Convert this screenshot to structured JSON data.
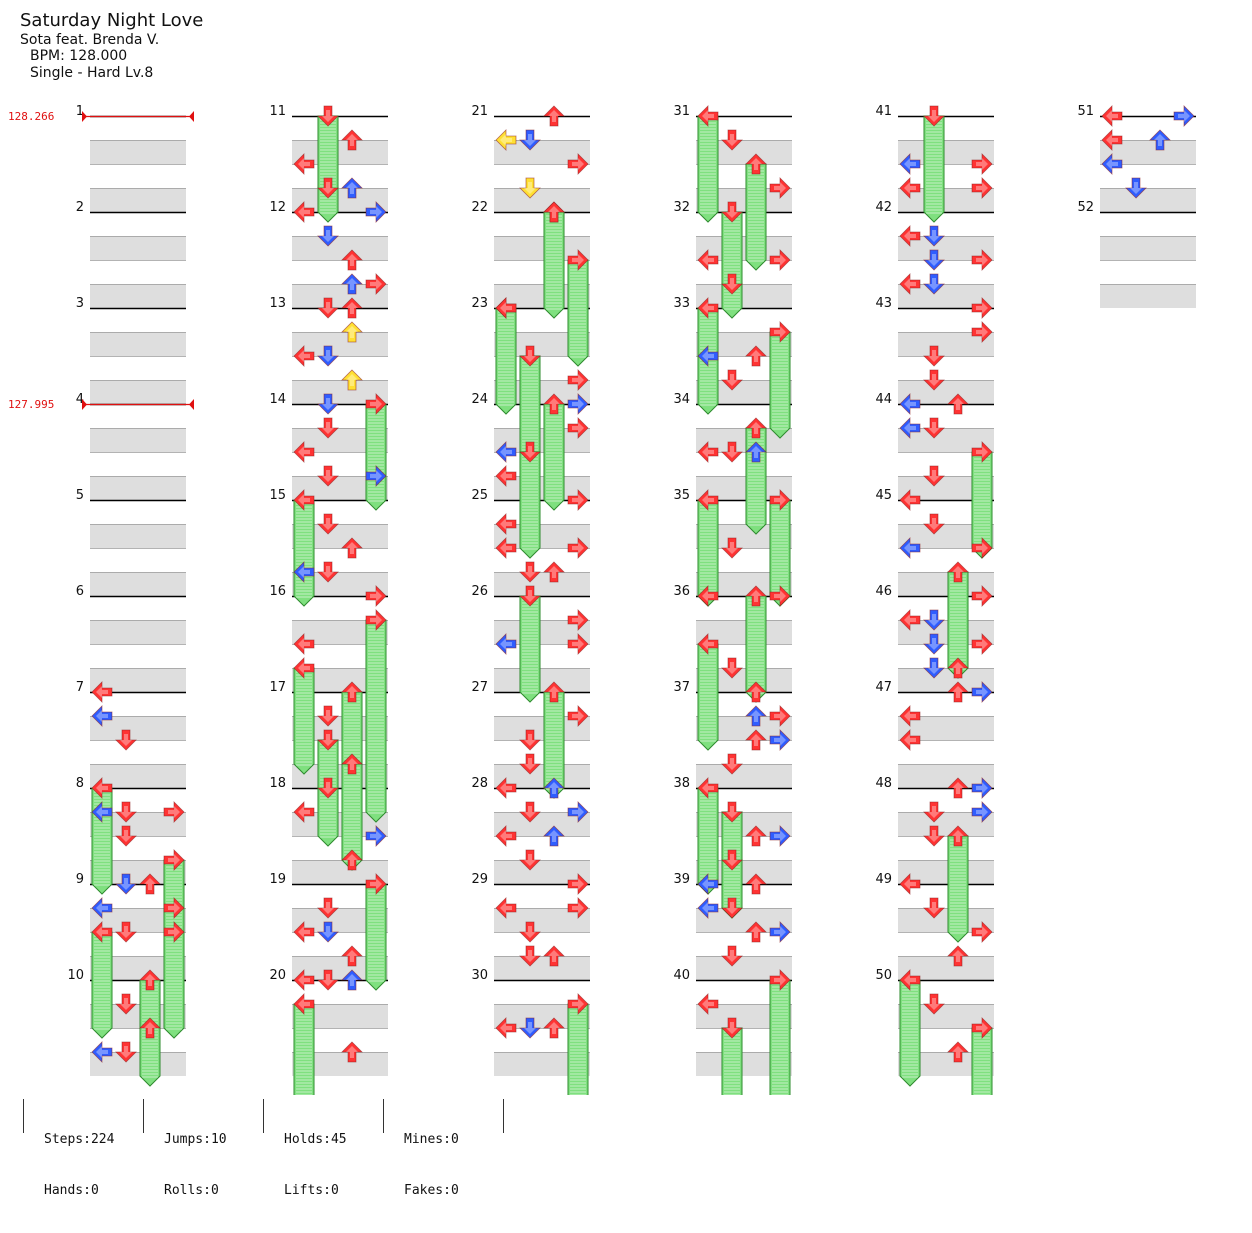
{
  "song": {
    "title": "Saturday Night Love",
    "artist": "Sota feat. Brenda V.",
    "bpm_label": "BPM: 128.000",
    "difficulty_label": "Single - Hard  Lv.8"
  },
  "bpm_changes": [
    {
      "measure": 1,
      "label": "128.266"
    },
    {
      "measure": 4,
      "label": "127.995"
    }
  ],
  "colors": {
    "quarter": "#ff3333",
    "eighth": "#2f5dff",
    "sixteenth": "#ffe033",
    "hold_fill": "#7fe07f",
    "hold_edge": "#2e8b2e",
    "band": "#dedede",
    "bpm_marker": "#e01010"
  },
  "measures": [
    {
      "n": 1,
      "label": "1"
    },
    {
      "n": 2,
      "label": "2"
    },
    {
      "n": 3,
      "label": "3"
    },
    {
      "n": 4,
      "label": "4"
    },
    {
      "n": 5,
      "label": "5"
    },
    {
      "n": 6,
      "label": "6"
    },
    {
      "n": 7,
      "label": "7"
    },
    {
      "n": 8,
      "label": "8"
    },
    {
      "n": 9,
      "label": "9"
    },
    {
      "n": 10,
      "label": "10"
    },
    {
      "n": 11,
      "label": "11"
    },
    {
      "n": 12,
      "label": "12"
    },
    {
      "n": 13,
      "label": "13"
    },
    {
      "n": 14,
      "label": "14"
    },
    {
      "n": 15,
      "label": "15"
    },
    {
      "n": 16,
      "label": "16"
    },
    {
      "n": 17,
      "label": "17"
    },
    {
      "n": 18,
      "label": "18"
    },
    {
      "n": 19,
      "label": "19"
    },
    {
      "n": 20,
      "label": "20"
    },
    {
      "n": 21,
      "label": "21"
    },
    {
      "n": 22,
      "label": "22"
    },
    {
      "n": 23,
      "label": "23"
    },
    {
      "n": 24,
      "label": "24"
    },
    {
      "n": 25,
      "label": "25"
    },
    {
      "n": 26,
      "label": "26"
    },
    {
      "n": 27,
      "label": "27"
    },
    {
      "n": 28,
      "label": "28"
    },
    {
      "n": 29,
      "label": "29"
    },
    {
      "n": 30,
      "label": "30"
    },
    {
      "n": 31,
      "label": "31"
    },
    {
      "n": 32,
      "label": "32"
    },
    {
      "n": 33,
      "label": "33"
    },
    {
      "n": 34,
      "label": "34"
    },
    {
      "n": 35,
      "label": "35"
    },
    {
      "n": 36,
      "label": "36"
    },
    {
      "n": 37,
      "label": "37"
    },
    {
      "n": 38,
      "label": "38"
    },
    {
      "n": 39,
      "label": "39"
    },
    {
      "n": 40,
      "label": "40"
    },
    {
      "n": 41,
      "label": "41"
    },
    {
      "n": 42,
      "label": "42"
    },
    {
      "n": 43,
      "label": "43"
    },
    {
      "n": 44,
      "label": "44"
    },
    {
      "n": 45,
      "label": "45"
    },
    {
      "n": 46,
      "label": "46"
    },
    {
      "n": 47,
      "label": "47"
    },
    {
      "n": 48,
      "label": "48"
    },
    {
      "n": 49,
      "label": "49"
    },
    {
      "n": 50,
      "label": "50"
    },
    {
      "n": 51,
      "label": "51"
    },
    {
      "n": 52,
      "label": "52"
    }
  ],
  "notes": [
    [
      7,
      0,
      "L",
      "q"
    ],
    [
      7,
      1,
      "L",
      "e"
    ],
    [
      7,
      2,
      "D",
      "q"
    ],
    [
      7,
      5,
      "L",
      "e"
    ],
    [
      7,
      5,
      "R",
      "q"
    ],
    [
      7,
      6,
      "D",
      "q"
    ],
    [
      8,
      0,
      "L",
      "q",
      1.0
    ],
    [
      8,
      1,
      "D",
      "q"
    ],
    [
      8,
      3,
      "R",
      "q",
      1.0
    ],
    [
      8,
      6,
      "D",
      "q"
    ],
    [
      9,
      0,
      "D",
      "e"
    ],
    [
      9,
      0,
      "U",
      "q"
    ],
    [
      9,
      1,
      "L",
      "e"
    ],
    [
      9,
      1,
      "R",
      "q"
    ],
    [
      9,
      2,
      "L",
      "q",
      1.0
    ],
    [
      9,
      2,
      "R",
      "q",
      1.0
    ],
    [
      10,
      0,
      "U",
      "q",
      1.0
    ],
    [
      10,
      1,
      "D",
      "q"
    ],
    [
      10,
      2,
      "U",
      "q"
    ],
    [
      10,
      3,
      "L",
      "e"
    ],
    [
      10,
      3,
      "D",
      "q"
    ],
    [
      11,
      0,
      "D",
      "q",
      1.0
    ],
    [
      11,
      1,
      "U",
      "q"
    ],
    [
      11,
      2,
      "L",
      "q"
    ],
    [
      11,
      3,
      "D",
      "q"
    ],
    [
      11,
      3,
      "U",
      "e"
    ],
    [
      11,
      4,
      "R",
      "e"
    ],
    [
      12,
      0,
      "L",
      "q"
    ],
    [
      12,
      1,
      "D",
      "e"
    ],
    [
      12,
      2,
      "U",
      "q"
    ],
    [
      12,
      3,
      "R",
      "q"
    ],
    [
      12,
      3,
      "U",
      "e"
    ],
    [
      12,
      4,
      "D",
      "q"
    ],
    [
      13,
      0,
      "U",
      "q"
    ],
    [
      13,
      1,
      "U",
      "s"
    ],
    [
      13,
      2,
      "D",
      "e"
    ],
    [
      13,
      2,
      "L",
      "q"
    ],
    [
      13,
      3,
      "U",
      "s"
    ],
    [
      13,
      4,
      "D",
      "e"
    ],
    [
      14,
      0,
      "R",
      "q",
      1.0
    ],
    [
      14,
      1,
      "D",
      "q"
    ],
    [
      14,
      2,
      "L",
      "q"
    ],
    [
      14,
      3,
      "R",
      "e"
    ],
    [
      14,
      3,
      "D",
      "q"
    ],
    [
      15,
      0,
      "L",
      "q",
      1.0
    ],
    [
      15,
      1,
      "D",
      "q"
    ],
    [
      15,
      2,
      "U",
      "q"
    ],
    [
      15,
      3,
      "L",
      "e"
    ],
    [
      15,
      3,
      "D",
      "q"
    ],
    [
      16,
      0,
      "R",
      "q"
    ],
    [
      16,
      1,
      "R",
      "q",
      2.0
    ],
    [
      16,
      2,
      "L",
      "q"
    ],
    [
      16,
      3,
      "L",
      "q",
      1.0
    ],
    [
      17,
      0,
      "U",
      "q",
      1.0
    ],
    [
      17,
      1,
      "D",
      "q"
    ],
    [
      17,
      2,
      "D",
      "q",
      1.0
    ],
    [
      17,
      3,
      "U",
      "q",
      1.0
    ],
    [
      18,
      0,
      "D",
      "q"
    ],
    [
      18,
      1,
      "L",
      "q"
    ],
    [
      18,
      2,
      "R",
      "e"
    ],
    [
      18,
      3,
      "U",
      "q"
    ],
    [
      19,
      0,
      "R",
      "q",
      1.0
    ],
    [
      19,
      1,
      "D",
      "q"
    ],
    [
      19,
      2,
      "L",
      "q"
    ],
    [
      19,
      2,
      "D",
      "e"
    ],
    [
      19,
      3,
      "U",
      "q"
    ],
    [
      20,
      0,
      "L",
      "q"
    ],
    [
      20,
      0,
      "D",
      "q"
    ],
    [
      20,
      0,
      "U",
      "e"
    ],
    [
      20,
      1,
      "L",
      "q",
      1.0
    ],
    [
      20,
      3,
      "U",
      "q"
    ],
    [
      21,
      0,
      "U",
      "q"
    ],
    [
      21,
      1,
      "L",
      "s"
    ],
    [
      21,
      1,
      "D",
      "e"
    ],
    [
      21,
      2,
      "R",
      "q"
    ],
    [
      21,
      3,
      "D",
      "s"
    ],
    [
      21,
      4,
      "U",
      "e"
    ],
    [
      22,
      0,
      "U",
      "q",
      1.0
    ],
    [
      22,
      2,
      "R",
      "q",
      1.0
    ],
    [
      22,
      4,
      "L",
      "q"
    ],
    [
      23,
      0,
      "L",
      "q",
      1.0
    ],
    [
      23,
      2,
      "D",
      "q",
      1.0
    ],
    [
      23,
      3,
      "R",
      "q"
    ],
    [
      24,
      0,
      "U",
      "q",
      1.0
    ],
    [
      24,
      0,
      "R",
      "e"
    ],
    [
      24,
      1,
      "R",
      "q"
    ],
    [
      24,
      2,
      "L",
      "e"
    ],
    [
      24,
      2,
      "D",
      "q",
      1.0
    ],
    [
      24,
      3,
      "L",
      "q"
    ],
    [
      25,
      0,
      "R",
      "q"
    ],
    [
      25,
      1,
      "L",
      "q"
    ],
    [
      25,
      2,
      "L",
      "q"
    ],
    [
      25,
      2,
      "R",
      "q"
    ],
    [
      25,
      3,
      "D",
      "q"
    ],
    [
      25,
      3,
      "U",
      "q"
    ],
    [
      26,
      0,
      "D",
      "q",
      1.0
    ],
    [
      26,
      1,
      "R",
      "q"
    ],
    [
      26,
      2,
      "L",
      "e"
    ],
    [
      26,
      2,
      "R",
      "q"
    ],
    [
      27,
      0,
      "U",
      "q",
      1.0
    ],
    [
      27,
      1,
      "R",
      "q"
    ],
    [
      27,
      2,
      "D",
      "q"
    ],
    [
      27,
      3,
      "D",
      "q"
    ],
    [
      28,
      0,
      "L",
      "q"
    ],
    [
      28,
      0,
      "U",
      "e"
    ],
    [
      28,
      1,
      "D",
      "q"
    ],
    [
      28,
      1,
      "R",
      "e"
    ],
    [
      28,
      2,
      "L",
      "q"
    ],
    [
      28,
      2,
      "U",
      "e"
    ],
    [
      28,
      3,
      "D",
      "q"
    ],
    [
      29,
      0,
      "R",
      "q"
    ],
    [
      29,
      1,
      "L",
      "q"
    ],
    [
      29,
      1,
      "R",
      "q"
    ],
    [
      29,
      2,
      "D",
      "q"
    ],
    [
      29,
      3,
      "D",
      "q"
    ],
    [
      29,
      3,
      "U",
      "q"
    ],
    [
      30,
      1,
      "R",
      "q",
      1.0
    ],
    [
      30,
      2,
      "L",
      "q"
    ],
    [
      30,
      2,
      "D",
      "e"
    ],
    [
      30,
      2,
      "U",
      "q"
    ],
    [
      31,
      0,
      "L",
      "q",
      1.0
    ],
    [
      31,
      1,
      "D",
      "q"
    ],
    [
      31,
      2,
      "U",
      "q",
      1.0
    ],
    [
      31,
      3,
      "R",
      "q"
    ],
    [
      32,
      0,
      "D",
      "q",
      1.0
    ],
    [
      32,
      2,
      "L",
      "q"
    ],
    [
      32,
      2,
      "R",
      "q"
    ],
    [
      32,
      3,
      "D",
      "q"
    ],
    [
      33,
      0,
      "L",
      "q",
      1.0
    ],
    [
      33,
      1,
      "R",
      "q",
      1.0
    ],
    [
      33,
      2,
      "U",
      "q"
    ],
    [
      33,
      2,
      "L",
      "e"
    ],
    [
      33,
      3,
      "D",
      "q"
    ],
    [
      34,
      1,
      "U",
      "q",
      1.0
    ],
    [
      34,
      2,
      "L",
      "q"
    ],
    [
      34,
      2,
      "D",
      "q"
    ],
    [
      34,
      2,
      "U",
      "e"
    ],
    [
      35,
      0,
      "L",
      "q",
      1.0
    ],
    [
      35,
      0,
      "R",
      "q",
      1.0
    ],
    [
      35,
      2,
      "D",
      "q"
    ],
    [
      36,
      0,
      "L",
      "q"
    ],
    [
      36,
      0,
      "R",
      "q"
    ],
    [
      36,
      0,
      "U",
      "q",
      1.0
    ],
    [
      36,
      2,
      "L",
      "q",
      1.0
    ],
    [
      36,
      3,
      "D",
      "q"
    ],
    [
      37,
      0,
      "U",
      "q"
    ],
    [
      37,
      1,
      "U",
      "e"
    ],
    [
      37,
      1,
      "R",
      "q"
    ],
    [
      37,
      2,
      "U",
      "q"
    ],
    [
      37,
      2,
      "R",
      "e"
    ],
    [
      37,
      3,
      "D",
      "q"
    ],
    [
      38,
      0,
      "L",
      "q",
      1.0
    ],
    [
      38,
      1,
      "D",
      "q",
      1.0
    ],
    [
      38,
      2,
      "U",
      "q"
    ],
    [
      38,
      2,
      "R",
      "e"
    ],
    [
      38,
      3,
      "D",
      "q"
    ],
    [
      39,
      0,
      "U",
      "q"
    ],
    [
      39,
      0,
      "L",
      "e"
    ],
    [
      39,
      1,
      "D",
      "q"
    ],
    [
      39,
      1,
      "L",
      "e"
    ],
    [
      39,
      2,
      "U",
      "q"
    ],
    [
      39,
      2,
      "R",
      "e"
    ],
    [
      39,
      3,
      "D",
      "q"
    ],
    [
      40,
      0,
      "R",
      "q",
      2.0
    ],
    [
      40,
      1,
      "L",
      "q"
    ],
    [
      40,
      2,
      "D",
      "q",
      2.0
    ],
    [
      41,
      0,
      "D",
      "q",
      1.0
    ],
    [
      41,
      2,
      "R",
      "q"
    ],
    [
      41,
      2,
      "L",
      "e"
    ],
    [
      41,
      3,
      "L",
      "q"
    ],
    [
      41,
      3,
      "R",
      "q"
    ],
    [
      42,
      1,
      "L",
      "q"
    ],
    [
      42,
      1,
      "D",
      "e"
    ],
    [
      42,
      2,
      "R",
      "q"
    ],
    [
      42,
      2,
      "D",
      "e"
    ],
    [
      42,
      3,
      "L",
      "q"
    ],
    [
      42,
      3,
      "D",
      "e"
    ],
    [
      43,
      0,
      "R",
      "q"
    ],
    [
      43,
      1,
      "R",
      "q"
    ],
    [
      43,
      2,
      "D",
      "q"
    ],
    [
      43,
      3,
      "D",
      "q"
    ],
    [
      44,
      0,
      "U",
      "q"
    ],
    [
      44,
      0,
      "L",
      "e"
    ],
    [
      44,
      1,
      "D",
      "q"
    ],
    [
      44,
      1,
      "L",
      "e"
    ],
    [
      44,
      2,
      "R",
      "q",
      1.0
    ],
    [
      44,
      3,
      "D",
      "q"
    ],
    [
      45,
      0,
      "L",
      "q"
    ],
    [
      45,
      1,
      "D",
      "q"
    ],
    [
      45,
      2,
      "R",
      "q"
    ],
    [
      45,
      2,
      "L",
      "e"
    ],
    [
      45,
      3,
      "U",
      "q",
      1.0
    ],
    [
      46,
      0,
      "R",
      "q"
    ],
    [
      46,
      1,
      "L",
      "q"
    ],
    [
      46,
      1,
      "D",
      "e"
    ],
    [
      46,
      2,
      "D",
      "e"
    ],
    [
      46,
      2,
      "R",
      "q"
    ],
    [
      46,
      3,
      "D",
      "e"
    ],
    [
      46,
      3,
      "U",
      "q"
    ],
    [
      47,
      0,
      "U",
      "q"
    ],
    [
      47,
      0,
      "R",
      "e"
    ],
    [
      47,
      1,
      "L",
      "q"
    ],
    [
      47,
      2,
      "L",
      "q"
    ],
    [
      48,
      0,
      "U",
      "q"
    ],
    [
      48,
      0,
      "R",
      "e"
    ],
    [
      48,
      1,
      "D",
      "q"
    ],
    [
      48,
      1,
      "R",
      "e"
    ],
    [
      48,
      2,
      "U",
      "q",
      1.0
    ],
    [
      48,
      2,
      "D",
      "q"
    ],
    [
      49,
      0,
      "L",
      "q"
    ],
    [
      49,
      1,
      "D",
      "q"
    ],
    [
      49,
      2,
      "R",
      "q"
    ],
    [
      49,
      3,
      "U",
      "q"
    ],
    [
      50,
      0,
      "L",
      "q",
      1.0
    ],
    [
      50,
      1,
      "D",
      "q"
    ],
    [
      50,
      2,
      "R",
      "q",
      1.0
    ],
    [
      50,
      3,
      "U",
      "q"
    ],
    [
      51,
      0,
      "L",
      "q"
    ],
    [
      51,
      0,
      "R",
      "e"
    ],
    [
      51,
      1,
      "L",
      "q"
    ],
    [
      51,
      1,
      "U",
      "e"
    ],
    [
      51,
      2,
      "L",
      "e"
    ],
    [
      51,
      3,
      "D",
      "e"
    ]
  ],
  "stats": {
    "steps": "Steps:224",
    "jumps": "Jumps:10",
    "holds": "Holds:45",
    "mines": "Mines:0",
    "hands": "Hands:0",
    "rolls": "Rolls:0",
    "lifts": "Lifts:0",
    "fakes": "Fakes:0"
  }
}
